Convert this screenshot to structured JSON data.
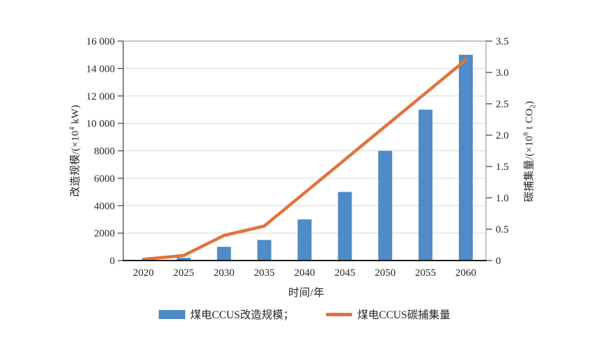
{
  "chart_data": {
    "type": "bar+line combo",
    "title": "",
    "categories": [
      "2020",
      "2025",
      "2030",
      "2035",
      "2040",
      "2045",
      "2050",
      "2055",
      "2060"
    ],
    "series": [
      {
        "name": "煤电CCUS改造规模",
        "type": "bar",
        "axis": "left",
        "color": "#4f8bc6",
        "values": [
          0,
          200,
          1000,
          1500,
          3000,
          5000,
          8000,
          11000,
          15000
        ]
      },
      {
        "name": "煤电CCUS碳捕集量",
        "type": "line",
        "axis": "right",
        "color": "#e0743e",
        "values": [
          0.02,
          0.08,
          0.4,
          0.55,
          1.08,
          1.61,
          2.14,
          2.67,
          3.2
        ]
      }
    ],
    "left_axis": {
      "label": "改造规模/(×10⁴ kW)",
      "label_parts": [
        "改造规模/(×10",
        "4",
        " kW)"
      ],
      "tick_labels": [
        "16 000",
        "14 000",
        "12 000",
        "10 000",
        "8000",
        "6000",
        "4000",
        "2000",
        "0"
      ],
      "min": 0,
      "max": 16000,
      "tick_step": 2000
    },
    "right_axis": {
      "label": "碳捕集量/(×10⁸ t CO₂)",
      "label_parts": [
        "碳捕集量/(×10",
        "8",
        " t CO",
        "2",
        ")"
      ],
      "tick_labels": [
        "3.5",
        "3.0",
        "2.5",
        "2.0",
        "1.5",
        "1.0",
        "0.5",
        "0"
      ],
      "min": 0,
      "max": 3.5,
      "tick_step": 0.5
    },
    "x_axis": {
      "label": "时间/年"
    },
    "legend": {
      "position": "bottom",
      "items": [
        {
          "label": "煤电CCUS改造规模；",
          "swatch": "bar",
          "color": "#4f8bc6"
        },
        {
          "label": "煤电CCUS碳捕集量",
          "swatch": "line",
          "color": "#e0743e"
        }
      ]
    },
    "grid": "horizontal",
    "colors": {
      "bar": "#4f8bc6",
      "line": "#e0743e",
      "gridline": "#d9d9d9",
      "frame": "#8c8c8c",
      "bottom_axis": "#1a1a1a",
      "left_axis": "#3a3a3a",
      "text": "#262626"
    },
    "ylim_left": [
      0,
      16000
    ],
    "ylim_right": [
      0,
      3.5
    ]
  }
}
